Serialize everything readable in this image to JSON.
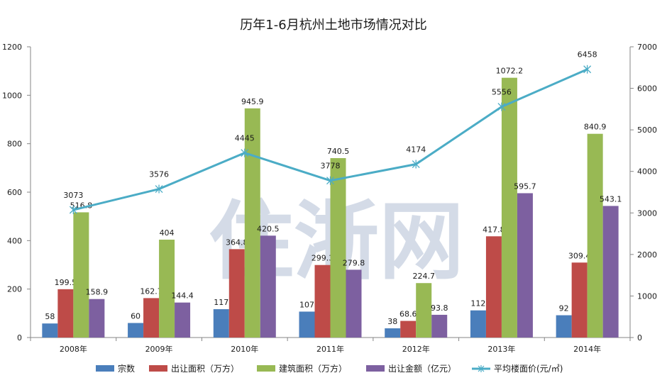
{
  "watermark": "住浙网",
  "chart_data": {
    "type": "bar",
    "title": "历年1-6月杭州土地市场情况对比",
    "categories": [
      "2008年",
      "2009年",
      "2010年",
      "2011年",
      "2012年",
      "2013年",
      "2014年"
    ],
    "series": [
      {
        "name": "宗数",
        "axis": "left",
        "color": "#4a7ebb",
        "values": [
          58,
          60,
          117,
          107,
          38,
          112,
          92
        ],
        "labels": [
          "58",
          "60",
          "117",
          "107",
          "38",
          "112",
          "92"
        ]
      },
      {
        "name": "出让面积（万方）",
        "axis": "left",
        "color": "#be4b48",
        "values": [
          199.5,
          162.7,
          364.8,
          299.3,
          68.6,
          417.8,
          309.4
        ],
        "labels": [
          "199.5",
          "162.7",
          "364.8",
          "299.3",
          "68.6",
          "417.8",
          "309.4"
        ]
      },
      {
        "name": "建筑面积（万方）",
        "axis": "left",
        "color": "#98b954",
        "values": [
          516.8,
          404,
          945.9,
          740.5,
          224.7,
          1072.2,
          840.9
        ],
        "labels": [
          "516.8",
          "404",
          "945.9",
          "740.5",
          "224.7",
          "1072.2",
          "840.9"
        ]
      },
      {
        "name": "出让金额（亿元）",
        "axis": "left",
        "color": "#7d60a0",
        "values": [
          158.9,
          144.4,
          420.5,
          279.8,
          93.8,
          595.7,
          543.1
        ],
        "labels": [
          "158.9",
          "144.4",
          "420.5",
          "279.8",
          "93.8",
          "595.7",
          "543.1"
        ]
      }
    ],
    "line": {
      "name": "平均楼面价(元/㎡)",
      "axis": "right",
      "color": "#4bacc6",
      "values": [
        3073,
        3576,
        4445,
        3778,
        4174,
        5556,
        6458
      ],
      "labels": [
        "3073",
        "3576",
        "4445",
        "3778",
        "4174",
        "5556",
        "6458"
      ]
    },
    "y_left": {
      "min": 0,
      "max": 1200,
      "ticks": [
        "0",
        "200",
        "400",
        "600",
        "800",
        "1000",
        "1200"
      ]
    },
    "y_right": {
      "min": 0,
      "max": 7000,
      "ticks": [
        "0",
        "1000",
        "2000",
        "3000",
        "4000",
        "5000",
        "6000",
        "7000"
      ]
    },
    "legend_position": "bottom",
    "grid": false
  }
}
